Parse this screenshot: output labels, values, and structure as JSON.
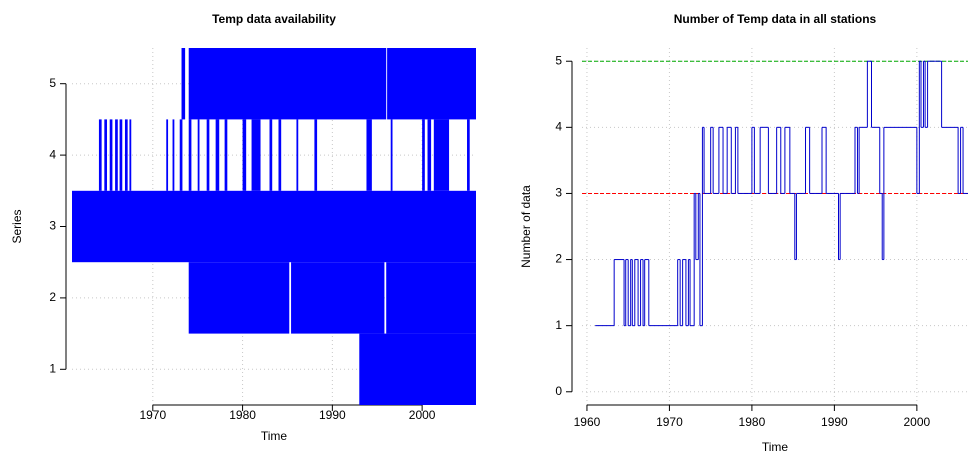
{
  "chart_data": [
    {
      "type": "availability",
      "title": "Temp data availability",
      "xlabel": "Time",
      "ylabel": "Series",
      "color": "#0000ff",
      "grid": true,
      "xlim": [
        1961,
        2006
      ],
      "ylim": [
        0.5,
        5.5
      ],
      "xticks": [
        1970,
        1980,
        1990,
        2000
      ],
      "yticks": [
        1,
        2,
        3,
        4,
        5
      ],
      "intervals": [
        [
          [
            1993,
            2006
          ]
        ],
        [
          [
            1974,
            1985.2
          ],
          [
            1985.4,
            1995.8
          ],
          [
            1996.0,
            2006
          ]
        ],
        [
          [
            1961,
            2006
          ]
        ],
        [
          [
            1964.0,
            1964.3
          ],
          [
            1964.6,
            1964.9
          ],
          [
            1965.2,
            1965.5
          ],
          [
            1965.8,
            1966.1
          ],
          [
            1966.3,
            1966.6
          ],
          [
            1966.9,
            1967.2
          ],
          [
            1967.4,
            1967.6
          ],
          [
            1971.5,
            1971.7
          ],
          [
            1972.2,
            1972.4
          ],
          [
            1973.0,
            1973.3
          ],
          [
            1974.0,
            1974.3
          ],
          [
            1975.0,
            1975.2
          ],
          [
            1976.0,
            1976.3
          ],
          [
            1977.0,
            1977.4
          ],
          [
            1978.0,
            1978.3
          ],
          [
            1980.0,
            1980.4
          ],
          [
            1981.0,
            1982.0
          ],
          [
            1983.0,
            1983.3
          ],
          [
            1984.0,
            1984.3
          ],
          [
            1986.0,
            1986.2
          ],
          [
            1988.0,
            1988.3
          ],
          [
            1993.8,
            1994.4
          ],
          [
            1996.5,
            1996.7
          ],
          [
            2000.0,
            2000.3
          ],
          [
            2000.6,
            2001.0
          ],
          [
            2001.3,
            2003.0
          ],
          [
            2005.0,
            2005.3
          ]
        ],
        [
          [
            1973.2,
            1973.6
          ],
          [
            1974.0,
            1996.0
          ],
          [
            1996.1,
            2006
          ]
        ]
      ]
    },
    {
      "type": "step",
      "title": "Number of Temp data in all stations",
      "xlabel": "Time",
      "ylabel": "Number of data",
      "color": "#0000cc",
      "grid": true,
      "xlim": [
        1959.4,
        2006.2
      ],
      "ylim": [
        -0.2,
        5.2
      ],
      "xticks": [
        1960,
        1970,
        1980,
        1990,
        2000
      ],
      "yticks": [
        0,
        1,
        2,
        3,
        4,
        5
      ],
      "hlines": [
        {
          "value": 3,
          "color": "#ff0000"
        },
        {
          "value": 5,
          "color": "#00aa00"
        }
      ],
      "x": [
        1961.0,
        1963.3,
        1964.5,
        1964.7,
        1965.0,
        1965.3,
        1965.5,
        1965.8,
        1966.2,
        1966.5,
        1966.8,
        1967.0,
        1967.5,
        1971.0,
        1971.3,
        1971.6,
        1972.0,
        1972.3,
        1972.5,
        1973.0,
        1973.2,
        1973.5,
        1973.7,
        1974.0,
        1974.2,
        1975.0,
        1975.3,
        1976.0,
        1976.5,
        1977.0,
        1977.5,
        1978.0,
        1978.3,
        1980.0,
        1980.3,
        1981.0,
        1982.0,
        1983.0,
        1983.5,
        1984.0,
        1984.6,
        1985.2,
        1985.4,
        1986.5,
        1987.0,
        1988.5,
        1989.0,
        1990.5,
        1990.7,
        1992.5,
        1992.8,
        1993.0,
        1994.0,
        1994.5,
        1995.5,
        1995.8,
        1996.0,
        2000.0,
        2000.3,
        2000.5,
        2000.8,
        2001.0,
        2001.3,
        2003.0,
        2005.0,
        2005.3,
        2005.6
      ],
      "values": [
        1,
        2,
        1,
        2,
        1,
        2,
        1,
        2,
        1,
        2,
        1,
        2,
        1,
        2,
        1,
        2,
        1,
        2,
        1,
        3,
        2,
        3,
        1,
        4,
        3,
        4,
        3,
        4,
        3,
        4,
        3,
        4,
        3,
        4,
        3,
        4,
        3,
        4,
        3,
        4,
        3,
        2,
        3,
        4,
        3,
        4,
        3,
        2,
        3,
        4,
        3,
        4,
        5,
        4,
        3,
        2,
        4,
        3,
        5,
        4,
        5,
        4,
        5,
        4,
        3,
        4,
        3
      ]
    }
  ]
}
